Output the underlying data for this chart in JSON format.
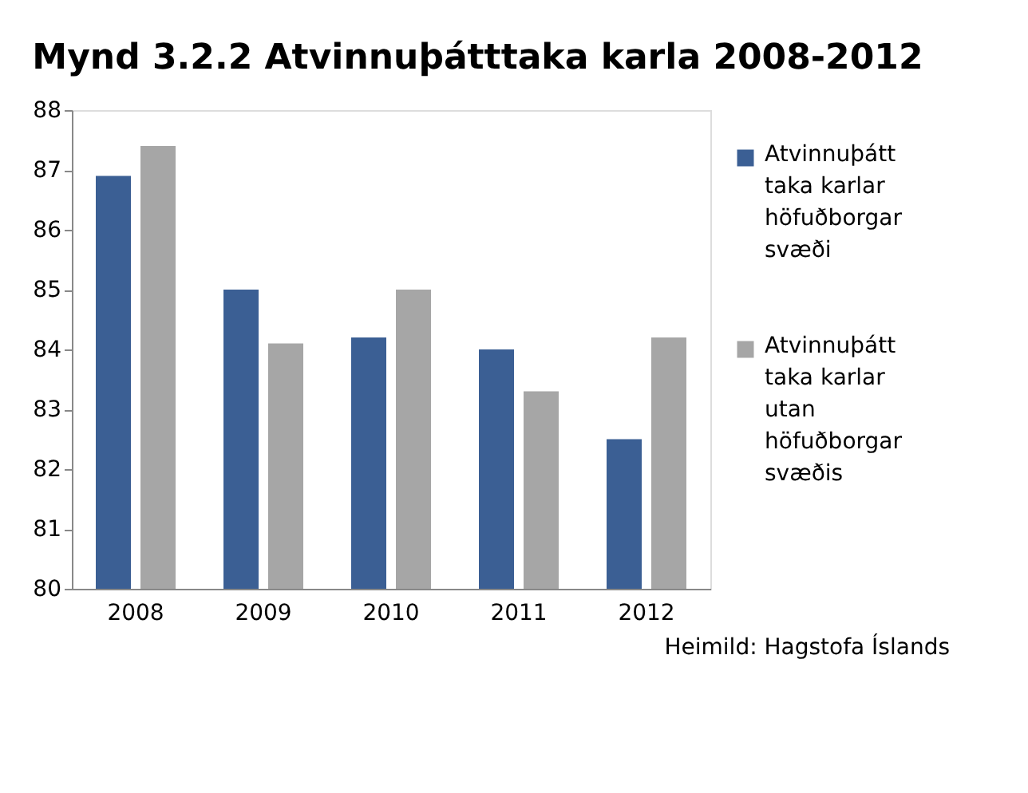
{
  "chart_data": {
    "type": "bar",
    "title": "Mynd 3.2.2 Atvinnuþátttaka karla 2008-2012",
    "categories": [
      "2008",
      "2009",
      "2010",
      "2011",
      "2012"
    ],
    "series": [
      {
        "name": "Atvinnuþátt\ntaka karlar\nhöfuðborgar\nsvæði",
        "color": "#3b5f94",
        "values": [
          86.9,
          85.0,
          84.2,
          84.0,
          82.5
        ]
      },
      {
        "name": "Atvinnuþátt\ntaka karlar\nutan\nhöfuðborgar\nsvæðis",
        "color": "#a6a6a6",
        "values": [
          87.4,
          84.1,
          85.0,
          83.3,
          84.2
        ]
      }
    ],
    "ylim": [
      80,
      88
    ],
    "yticks": [
      80,
      81,
      82,
      83,
      84,
      85,
      86,
      87,
      88
    ],
    "grid": false,
    "legend": "right",
    "annotations": [
      "Heimild: Hagstofa Íslands"
    ]
  }
}
